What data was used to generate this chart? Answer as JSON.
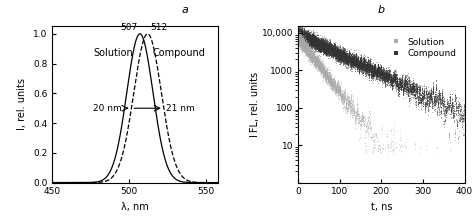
{
  "panel_a": {
    "label": "a",
    "xlabel": "λ, nm",
    "ylabel": "I, rel. units",
    "xlim": [
      450,
      558
    ],
    "ylim": [
      0,
      1.05
    ],
    "xticks": [
      450,
      500,
      550
    ],
    "yticks": [
      0,
      0.2,
      0.4,
      0.6,
      0.8,
      1.0
    ],
    "solution_peak": 507,
    "solution_fwhm": 20,
    "compound_peak": 512,
    "compound_fwhm": 21,
    "solution_label": "Solution",
    "compound_label": "Compound",
    "peak_label_solution": "507",
    "peak_label_compound": "512",
    "fwhm_label_solution": "20 nm",
    "fwhm_label_compound": "21 nm"
  },
  "panel_b": {
    "label": "b",
    "xlabel": "t, ns",
    "ylabel": "I FL, rel. units",
    "xlim": [
      0,
      400
    ],
    "ylim_log": [
      1,
      15000
    ],
    "xticks": [
      0,
      100,
      200,
      300,
      400
    ],
    "solution_label": "Solution",
    "compound_label": "Compound",
    "solution_tau": 30,
    "compound_tau": 80,
    "solution_amp": 7000,
    "compound_amp": 10000,
    "solution_color": "#aaaaaa",
    "compound_color": "#333333",
    "n_solution": 25000,
    "n_compound": 40000
  },
  "fig_bgcolor": "#ffffff"
}
